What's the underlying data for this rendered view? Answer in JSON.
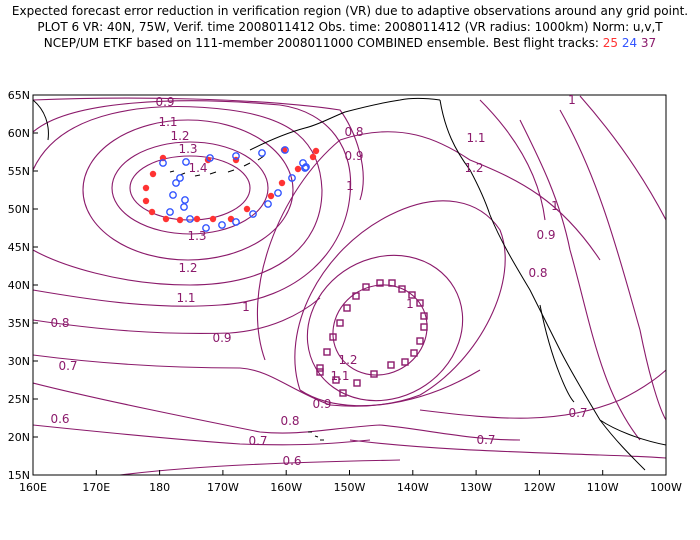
{
  "title": {
    "line1": "Expected forecast error reduction in verification region (VR) due to adaptive observations around any grid point.",
    "line2": "PLOT 6 VR: 40N, 75W, Verif. time 2008011412 Obs. time: 2008011412 (VR radius: 1000km) Norm: u,v,T",
    "line3_prefix": "NCEP/UM ETKF based on 111-member 2008011000 COMBINED ensemble.  Best flight tracks:",
    "track_ids": [
      "25",
      "24",
      "37"
    ]
  },
  "colors": {
    "contour": "#8b1a6b",
    "coast": "#000000",
    "track25": "#ff3333",
    "track24": "#3355ff",
    "track37": "#8b1a6b"
  },
  "axes": {
    "lat_labels": [
      "65N",
      "60N",
      "55N",
      "50N",
      "45N",
      "40N",
      "35N",
      "30N",
      "25N",
      "20N",
      "15N"
    ],
    "lon_labels": [
      "160E",
      "170E",
      "180",
      "170W",
      "160W",
      "150W",
      "140W",
      "130W",
      "120W",
      "110W",
      "100W"
    ]
  },
  "contour_labels": [
    {
      "text": "0.9"
    },
    {
      "text": "1.1"
    },
    {
      "text": "1.2"
    },
    {
      "text": "1.3"
    },
    {
      "text": "1.4"
    },
    {
      "text": "1.3"
    },
    {
      "text": "1.2"
    },
    {
      "text": "1.1"
    },
    {
      "text": "0.8"
    },
    {
      "text": "0.7"
    },
    {
      "text": "0.6"
    },
    {
      "text": "0.9"
    },
    {
      "text": "1"
    },
    {
      "text": "0.8"
    },
    {
      "text": "0.9"
    },
    {
      "text": "1"
    },
    {
      "text": "1.1"
    },
    {
      "text": "1.2"
    },
    {
      "text": "1"
    },
    {
      "text": "0.9"
    },
    {
      "text": "0.8"
    },
    {
      "text": "1"
    },
    {
      "text": "1.2"
    },
    {
      "text": "1.1"
    },
    {
      "text": "0.9"
    },
    {
      "text": "0.8"
    },
    {
      "text": "0.7"
    },
    {
      "text": "0.6"
    },
    {
      "text": "0.7"
    },
    {
      "text": "0.7"
    },
    {
      "text": "1"
    }
  ]
}
